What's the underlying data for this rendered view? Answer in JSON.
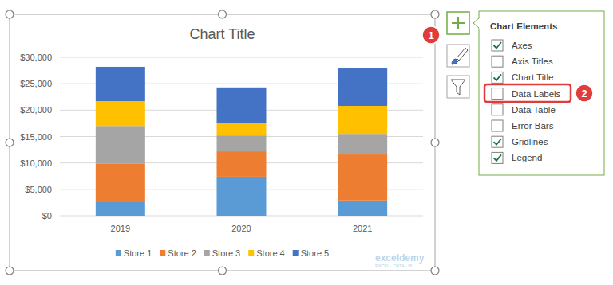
{
  "chart_data": {
    "type": "bar",
    "title": "Chart Title",
    "stacked": true,
    "grid": true,
    "legend": "bottom",
    "categories": [
      "2019",
      "2020",
      "2021"
    ],
    "series": [
      {
        "name": "Store 1",
        "color": "#5b9bd5",
        "values": [
          2700,
          7400,
          2900
        ]
      },
      {
        "name": "Store 2",
        "color": "#ed7d31",
        "values": [
          7200,
          4800,
          8700
        ]
      },
      {
        "name": "Store 3",
        "color": "#a5a5a5",
        "values": [
          7100,
          3000,
          3900
        ]
      },
      {
        "name": "Store 4",
        "color": "#ffc000",
        "values": [
          4700,
          2300,
          5300
        ]
      },
      {
        "name": "Store 5",
        "color": "#4472c4",
        "values": [
          6500,
          6800,
          7100
        ]
      }
    ],
    "ylim": [
      0,
      30000
    ],
    "yticks": [
      {
        "value": 0,
        "label": "$0"
      },
      {
        "value": 5000,
        "label": "$5,000"
      },
      {
        "value": 10000,
        "label": "$10,000"
      },
      {
        "value": 15000,
        "label": "$15,000"
      },
      {
        "value": 20000,
        "label": "$20,000"
      },
      {
        "value": 25000,
        "label": "$25,000"
      },
      {
        "value": 30000,
        "label": "$30,000"
      }
    ]
  },
  "panel": {
    "title": "Chart Elements",
    "items": [
      {
        "label": "Axes",
        "checked": true
      },
      {
        "label": "Axis Titles",
        "checked": false
      },
      {
        "label": "Chart Title",
        "checked": true
      },
      {
        "label": "Data Labels",
        "checked": false
      },
      {
        "label": "Data Table",
        "checked": false
      },
      {
        "label": "Error Bars",
        "checked": false
      },
      {
        "label": "Gridlines",
        "checked": true
      },
      {
        "label": "Legend",
        "checked": true
      }
    ]
  },
  "callouts": [
    "1",
    "2"
  ],
  "watermark": "exceldemy",
  "watermark_sub": "EXCEL · DATA · BI"
}
